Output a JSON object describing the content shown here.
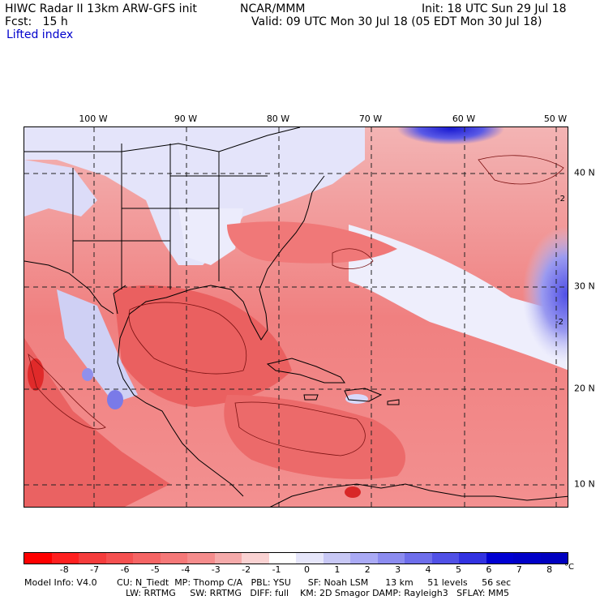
{
  "header": {
    "title": "HIWC Radar II 13km ARW-GFS init",
    "center": "NCAR/MMM",
    "init": "Init: 18 UTC Sun 29 Jul 18",
    "fcst": "Fcst:   15 h",
    "valid": "Valid: 09 UTC Mon 30 Jul 18 (05 EDT Mon 30 Jul 18)",
    "field": "Lifted index"
  },
  "map": {
    "lon_labels": [
      "100 W",
      "90 W",
      "80 W",
      "70 W",
      "60 W",
      "50 W"
    ],
    "lat_labels": [
      "40 N",
      "30 N",
      "20 N",
      "10 N"
    ],
    "contour_labels": [
      "-2",
      "-2"
    ]
  },
  "colorbar": {
    "ticks": [
      "-8",
      "-7",
      "-6",
      "-5",
      "-4",
      "-3",
      "-2",
      "-1",
      "0",
      "1",
      "2",
      "3",
      "4",
      "5",
      "6",
      "7",
      "8"
    ],
    "unit": "°C",
    "colors": [
      "#ff0000",
      "#ff2020",
      "#f53c3c",
      "#f55050",
      "#f56464",
      "#f57878",
      "#f58c8c",
      "#f5aaaa",
      "#fad2d2",
      "#ffffff",
      "#e6e6fa",
      "#c8c8f5",
      "#aaaaf5",
      "#8c8cf0",
      "#6e6eeb",
      "#5050e6",
      "#3232e1",
      "#0000d2",
      "#0000c8",
      "#0000c0"
    ]
  },
  "footer": {
    "line1": "Model Info: V4.0       CU: N_Tiedt  MP: Thomp C/A   PBL: YSU      SF: Noah LSM      13 km     51 levels     56 sec",
    "line2": "LW: RRTMG     SW: RRTMG   DIFF: full    KM: 2D Smagor DAMP: Rayleigh3   SFLAY: MM5"
  }
}
